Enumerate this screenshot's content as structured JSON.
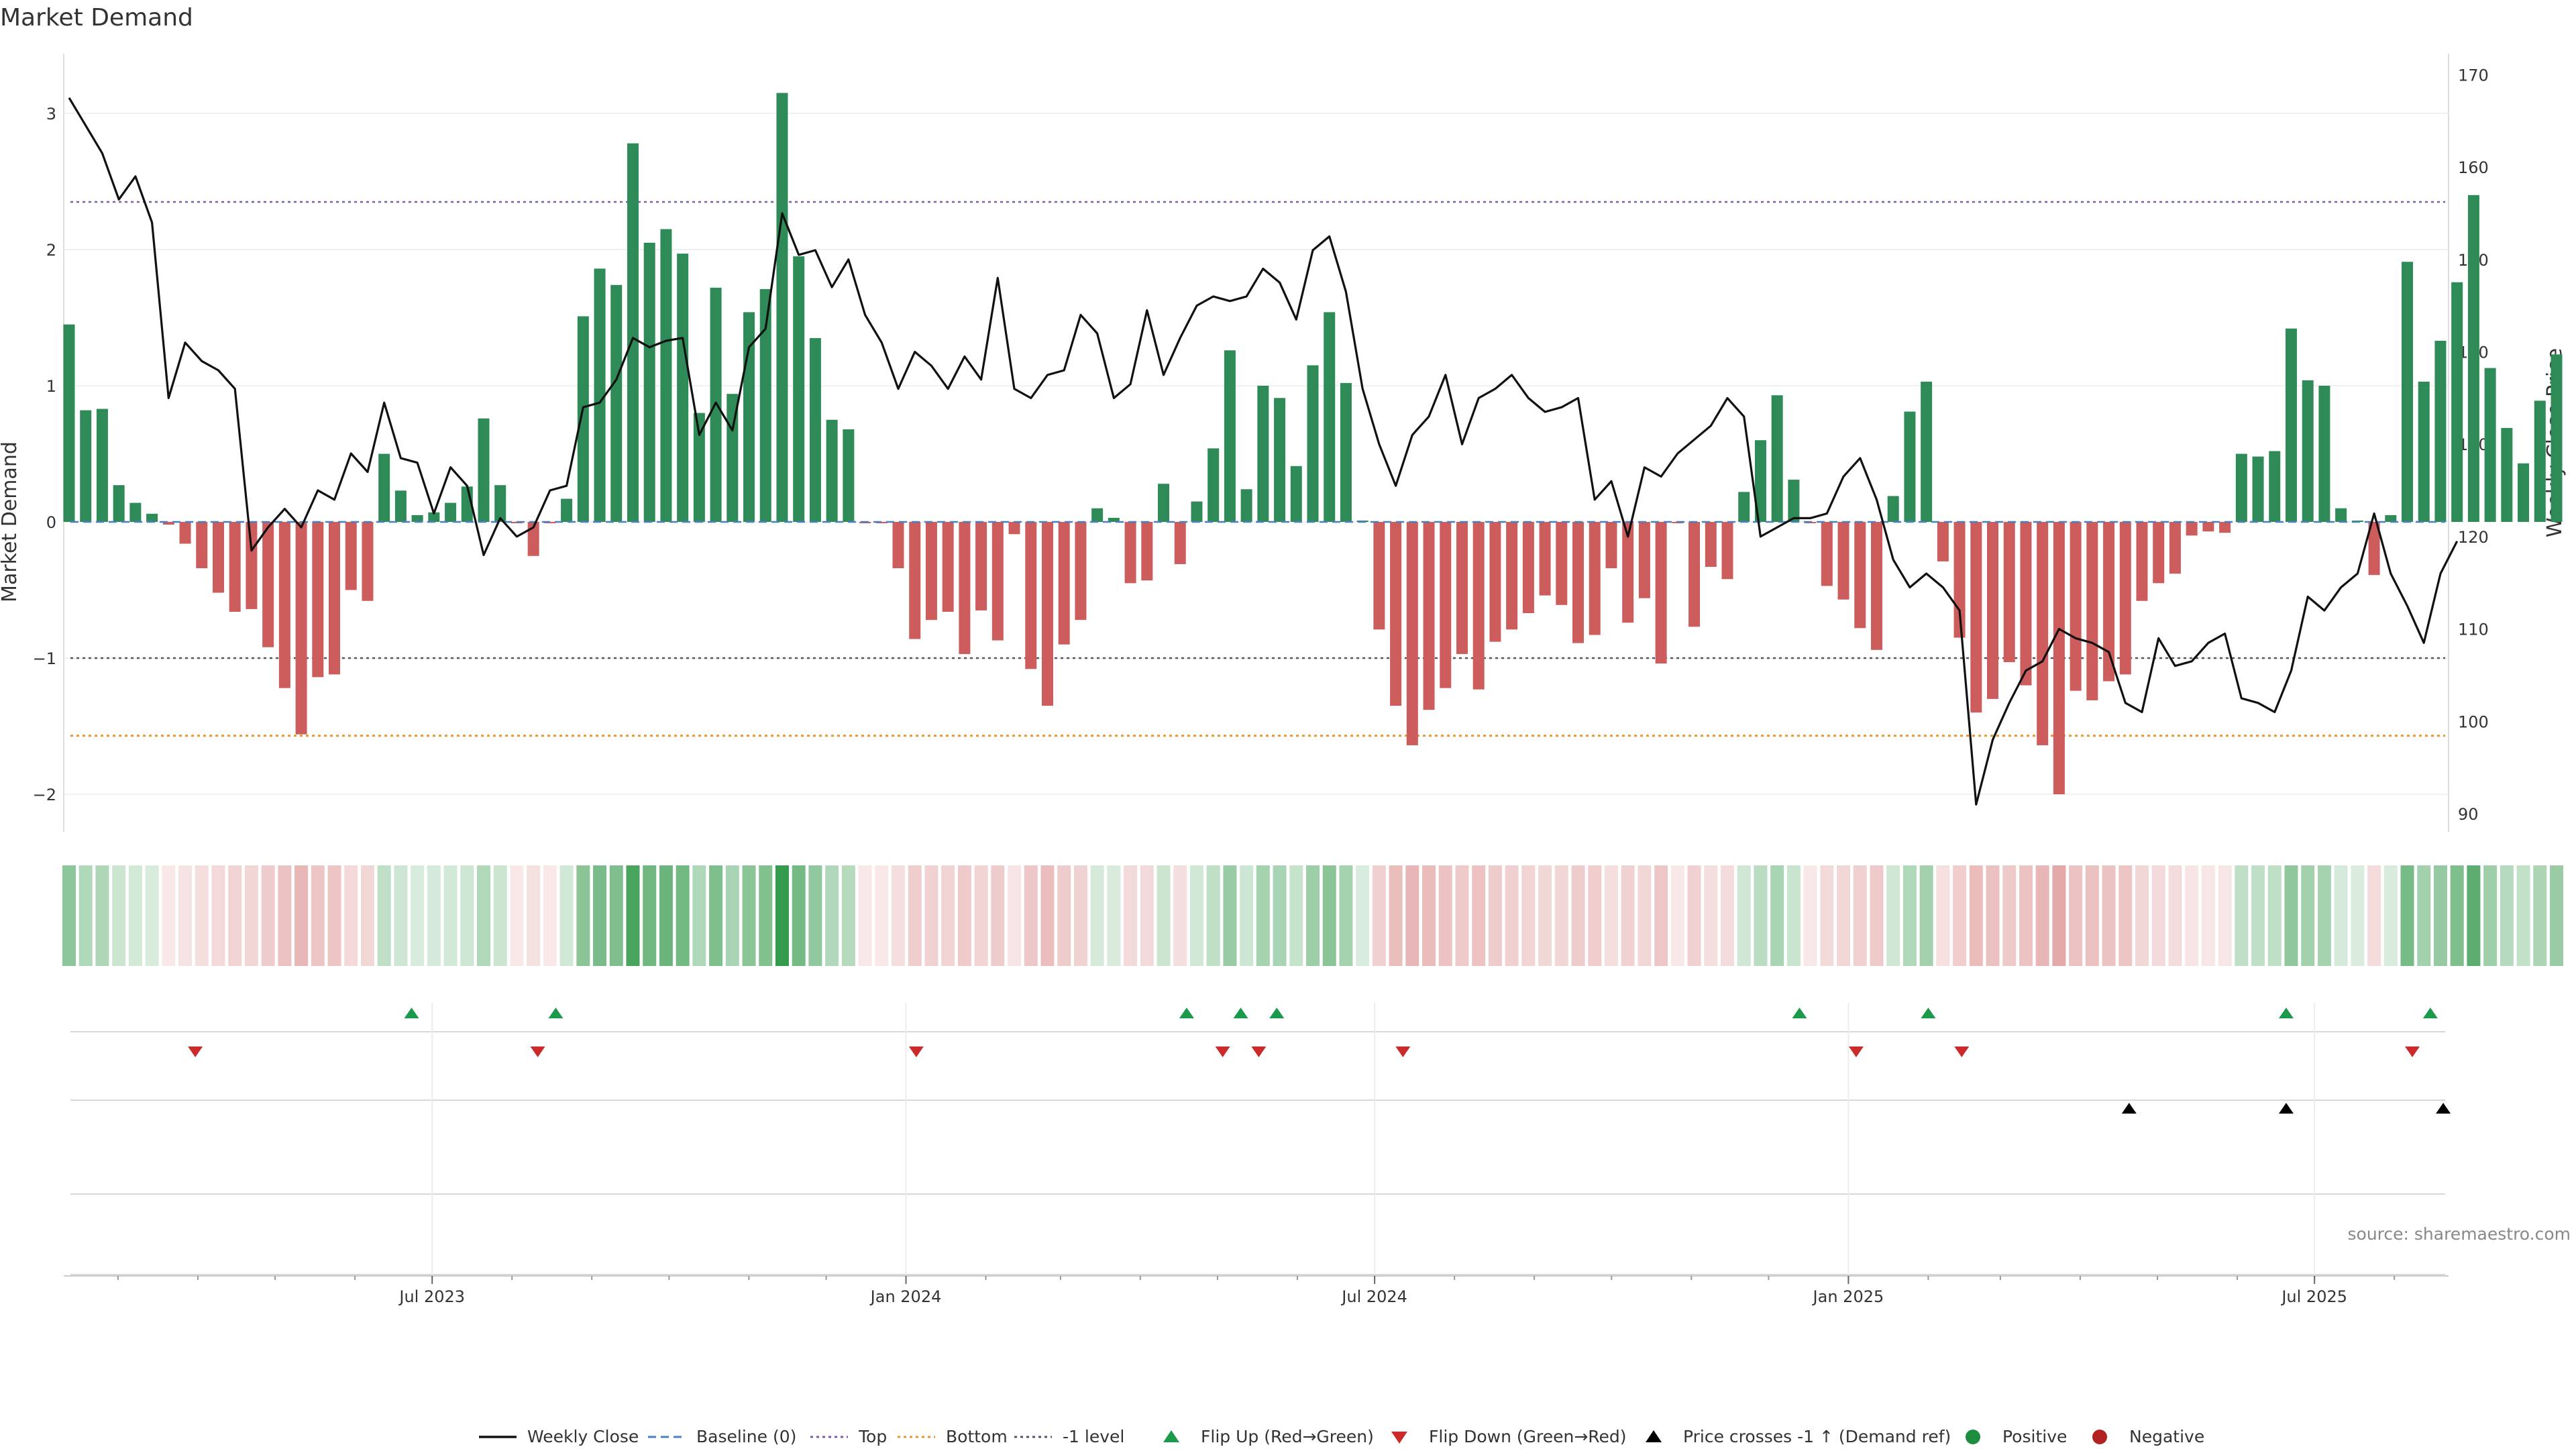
{
  "chart_data": {
    "type": "bar",
    "title": "Market Demand",
    "ylabel": "Market Demand",
    "y2label": "Weekly Close Price",
    "ylim": [
      -2.25,
      3.4
    ],
    "y2lim": [
      88,
      172
    ],
    "yticks": [
      -2,
      -1,
      0,
      1,
      2,
      3
    ],
    "ytick_labels": [
      "−2",
      "−1",
      "0",
      "1",
      "2",
      "3"
    ],
    "y2ticks": [
      90,
      100,
      110,
      120,
      130,
      140,
      150,
      160,
      170
    ],
    "y2tick_labels": [
      "90",
      "100",
      "110",
      "120",
      "130",
      "140",
      "150",
      "160",
      "170"
    ],
    "x_start": "2023-02-10",
    "x_end": "2025-10-03",
    "x_months": [
      "2023-02",
      "2025-10"
    ],
    "xticks": [
      {
        "date": "2023-07-01",
        "label": "Jul 2023"
      },
      {
        "date": "2024-01-01",
        "label": "Jan 2024"
      },
      {
        "date": "2024-07-01",
        "label": "Jul 2024"
      },
      {
        "date": "2025-01-01",
        "label": "Jan 2025"
      },
      {
        "date": "2025-07-01",
        "label": "Jul 2025"
      }
    ],
    "levels": {
      "top": 2.35,
      "bottom": -1.57,
      "minus_one": -1,
      "baseline": 0
    },
    "demand": [
      1.45,
      0.82,
      0.83,
      0.27,
      0.14,
      0.06,
      -0.02,
      -0.16,
      -0.34,
      -0.52,
      -0.66,
      -0.64,
      -0.92,
      -1.22,
      -1.56,
      -1.14,
      -1.12,
      -0.5,
      -0.58,
      0.5,
      0.23,
      0.05,
      0.07,
      0.14,
      0.26,
      0.76,
      0.27,
      -0.01,
      -0.25,
      -0.01,
      0.17,
      1.51,
      1.86,
      1.74,
      2.78,
      2.05,
      2.15,
      1.97,
      0.8,
      1.72,
      0.94,
      1.54,
      1.71,
      3.15,
      1.95,
      1.35,
      0.75,
      0.68,
      -0.01,
      -0.01,
      -0.34,
      -0.86,
      -0.72,
      -0.66,
      -0.97,
      -0.65,
      -0.87,
      -0.09,
      -1.08,
      -1.35,
      -0.9,
      -0.72,
      0.1,
      0.03,
      -0.45,
      -0.43,
      0.28,
      -0.31,
      0.15,
      0.54,
      1.26,
      0.24,
      1.0,
      0.91,
      0.41,
      1.15,
      1.54,
      1.02,
      0.01,
      -0.79,
      -1.35,
      -1.64,
      -1.38,
      -1.22,
      -0.97,
      -1.23,
      -0.88,
      -0.79,
      -0.67,
      -0.54,
      -0.61,
      -0.89,
      -0.83,
      -0.34,
      -0.74,
      -0.56,
      -1.04,
      -0.01,
      -0.77,
      -0.33,
      -0.42,
      0.22,
      0.6,
      0.93,
      0.31,
      -0.01,
      -0.47,
      -0.57,
      -0.78,
      -0.94,
      0.19,
      0.81,
      1.03,
      -0.29,
      -0.85,
      -1.4,
      -1.3,
      -1.03,
      -1.2,
      -1.64,
      -2.0,
      -1.24,
      -1.31,
      -1.17,
      -1.12,
      -0.58,
      -0.45,
      -0.38,
      -0.1,
      -0.07,
      -0.08,
      0.5,
      0.48,
      0.52,
      1.42,
      1.04,
      1.0,
      0.1,
      0.0,
      -0.39,
      0.05,
      1.91,
      1.03,
      1.33,
      1.76,
      2.4,
      1.13,
      0.69,
      0.43,
      0.89,
      1.23
    ],
    "price": [
      167.5,
      164.5,
      161.5,
      156.5,
      159,
      154,
      135,
      141,
      139,
      138,
      136,
      118.5,
      121,
      123,
      121,
      125,
      124,
      129,
      127,
      134.5,
      128.5,
      128,
      122.5,
      127.5,
      125.5,
      118,
      122,
      120,
      121,
      125,
      125.5,
      134,
      134.5,
      137,
      141.5,
      140.5,
      141.2,
      141.5,
      131,
      134.5,
      131.5,
      140.5,
      142.5,
      155,
      150.5,
      151,
      147,
      150,
      144,
      141,
      136,
      140,
      138.5,
      136,
      139.5,
      137,
      148,
      136,
      135,
      137.5,
      138,
      144,
      142,
      135,
      136.5,
      144.5,
      137.5,
      141.5,
      145,
      146,
      145.5,
      146,
      149,
      147.5,
      143.5,
      151,
      152.5,
      146.5,
      136,
      130,
      125.5,
      131,
      133,
      137.5,
      130,
      135,
      136,
      137.5,
      135,
      133.5,
      134,
      135,
      124,
      126,
      120,
      127.5,
      126.5,
      129,
      130.5,
      132,
      135,
      133,
      120,
      121,
      122,
      122,
      122.5,
      126.5,
      128.5,
      124,
      117.5,
      114.5,
      116,
      114.5,
      112,
      91,
      98,
      102,
      105.5,
      106.5,
      110,
      109,
      108.5,
      107.5,
      102,
      101,
      109,
      106,
      106.5,
      108.5,
      109.5,
      102.5,
      102,
      101,
      105.5,
      113.5,
      112,
      114.5,
      116,
      122.5,
      116,
      112.5,
      108.5,
      116,
      119.5
    ],
    "flip_up": [
      "2023-06-23",
      "2023-08-18",
      "2024-04-19",
      "2024-05-10",
      "2024-05-24",
      "2024-12-13",
      "2025-02-01",
      "2025-06-20",
      "2025-08-15"
    ],
    "flip_down": [
      "2023-03-31",
      "2023-08-11",
      "2024-01-05",
      "2024-05-03",
      "2024-05-17",
      "2024-07-12",
      "2025-01-04",
      "2025-02-14",
      "2025-08-08"
    ],
    "price_crosses": [
      "2025-04-20",
      "2025-06-20",
      "2025-08-20"
    ],
    "legend": [
      {
        "key": "close",
        "label": "Weekly Close"
      },
      {
        "key": "baseline",
        "label": "Baseline (0)"
      },
      {
        "key": "top",
        "label": "Top"
      },
      {
        "key": "bottom",
        "label": "Bottom"
      },
      {
        "key": "minus1",
        "label": "-1 level"
      },
      {
        "key": "flipup",
        "label": "Flip Up (Red→Green)"
      },
      {
        "key": "flipdown",
        "label": "Flip Down (Green→Red)"
      },
      {
        "key": "cross",
        "label": "Price crosses -1 ↑ (Demand ref)"
      },
      {
        "key": "positive",
        "label": "Positive"
      },
      {
        "key": "negative",
        "label": "Negative"
      }
    ],
    "source": "source: sharemaestro.com"
  },
  "colors": {
    "positive": "#2e8b57",
    "negative": "#cd5c5c",
    "line": "#111111",
    "baseline": "#4a7fc0",
    "top": "#7a5ca8",
    "bottom": "#e69533",
    "minus_one": "#555566",
    "flip_up": "#1a9a4a",
    "flip_down": "#cc2a2a",
    "cross": "#000000",
    "positive_dot": "#1e8e3e",
    "negative_dot": "#b22222"
  }
}
